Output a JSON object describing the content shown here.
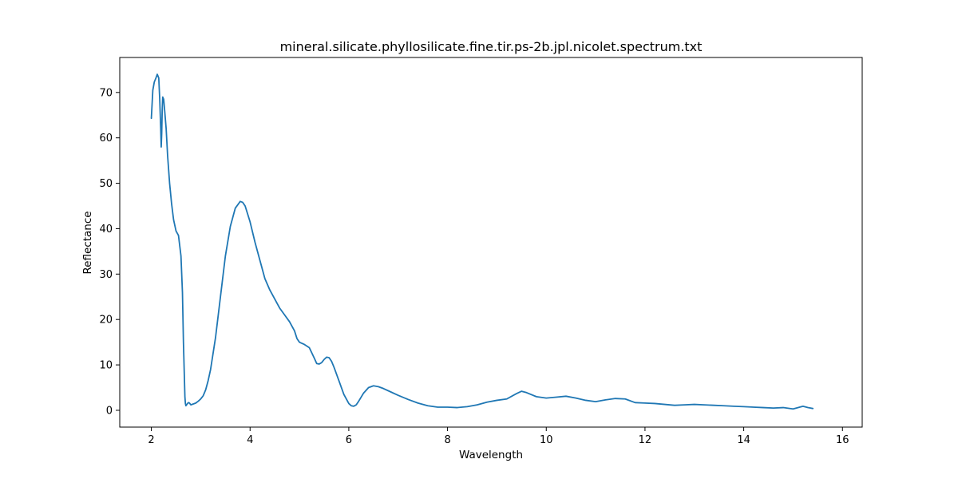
{
  "chart_data": {
    "type": "line",
    "title": "mineral.silicate.phyllosilicate.fine.tir.ps-2b.jpl.nicolet.spectrum.txt",
    "xlabel": "Wavelength",
    "ylabel": "Reflectance",
    "xlim": [
      1.36,
      16.4
    ],
    "ylim": [
      -3.7,
      77.7
    ],
    "xticks": [
      2,
      4,
      6,
      8,
      10,
      12,
      14,
      16
    ],
    "yticks": [
      0,
      10,
      20,
      30,
      40,
      50,
      60,
      70
    ],
    "grid": false,
    "series": [
      {
        "color": "#1f77b4",
        "x": [
          2.0,
          2.03,
          2.06,
          2.09,
          2.12,
          2.15,
          2.17,
          2.19,
          2.2,
          2.21,
          2.22,
          2.23,
          2.25,
          2.27,
          2.3,
          2.33,
          2.37,
          2.41,
          2.45,
          2.5,
          2.55,
          2.6,
          2.63,
          2.65,
          2.67,
          2.68,
          2.69,
          2.7,
          2.72,
          2.74,
          2.76,
          2.78,
          2.8,
          2.85,
          2.9,
          2.95,
          3.0,
          3.05,
          3.1,
          3.15,
          3.2,
          3.3,
          3.4,
          3.5,
          3.6,
          3.7,
          3.8,
          3.85,
          3.9,
          4.0,
          4.1,
          4.2,
          4.3,
          4.4,
          4.5,
          4.6,
          4.7,
          4.8,
          4.9,
          4.95,
          5.0,
          5.1,
          5.2,
          5.3,
          5.35,
          5.4,
          5.45,
          5.5,
          5.55,
          5.6,
          5.65,
          5.7,
          5.8,
          5.9,
          6.0,
          6.05,
          6.1,
          6.15,
          6.2,
          6.3,
          6.4,
          6.5,
          6.6,
          6.7,
          6.8,
          7.0,
          7.2,
          7.4,
          7.6,
          7.8,
          8.0,
          8.2,
          8.4,
          8.6,
          8.8,
          9.0,
          9.2,
          9.4,
          9.5,
          9.6,
          9.8,
          10.0,
          10.2,
          10.4,
          10.6,
          10.8,
          11.0,
          11.2,
          11.4,
          11.6,
          11.8,
          12.0,
          12.2,
          12.4,
          12.6,
          12.8,
          13.0,
          13.2,
          13.4,
          13.6,
          13.8,
          14.0,
          14.2,
          14.4,
          14.6,
          14.8,
          15.0,
          15.2,
          15.3,
          15.4
        ],
        "y": [
          64.3,
          70.5,
          72.3,
          73.1,
          74.0,
          73.2,
          68.5,
          62.0,
          58.0,
          61.0,
          66.0,
          69.0,
          68.5,
          66.0,
          62.0,
          56.0,
          50.0,
          45.5,
          42.0,
          39.5,
          38.5,
          34.0,
          26.0,
          15.0,
          7.0,
          3.0,
          1.5,
          1.0,
          1.3,
          1.6,
          1.7,
          1.5,
          1.2,
          1.4,
          1.6,
          2.0,
          2.5,
          3.2,
          4.5,
          6.5,
          9.0,
          16.0,
          25.0,
          34.0,
          40.5,
          44.5,
          46.0,
          45.8,
          45.0,
          41.5,
          37.0,
          33.0,
          29.0,
          26.5,
          24.5,
          22.5,
          21.0,
          19.5,
          17.5,
          15.8,
          15.0,
          14.5,
          13.8,
          11.5,
          10.3,
          10.2,
          10.5,
          11.2,
          11.7,
          11.6,
          10.8,
          9.5,
          6.5,
          3.5,
          1.5,
          1.0,
          0.9,
          1.2,
          2.0,
          3.8,
          5.0,
          5.4,
          5.2,
          4.8,
          4.3,
          3.3,
          2.4,
          1.6,
          1.0,
          0.7,
          0.7,
          0.6,
          0.8,
          1.2,
          1.8,
          2.2,
          2.5,
          3.7,
          4.2,
          3.9,
          3.0,
          2.7,
          2.9,
          3.1,
          2.7,
          2.2,
          1.9,
          2.3,
          2.6,
          2.5,
          1.7,
          1.6,
          1.5,
          1.3,
          1.1,
          1.2,
          1.3,
          1.2,
          1.1,
          1.0,
          0.9,
          0.8,
          0.7,
          0.6,
          0.5,
          0.6,
          0.3,
          0.9,
          0.6,
          0.4
        ]
      }
    ]
  }
}
